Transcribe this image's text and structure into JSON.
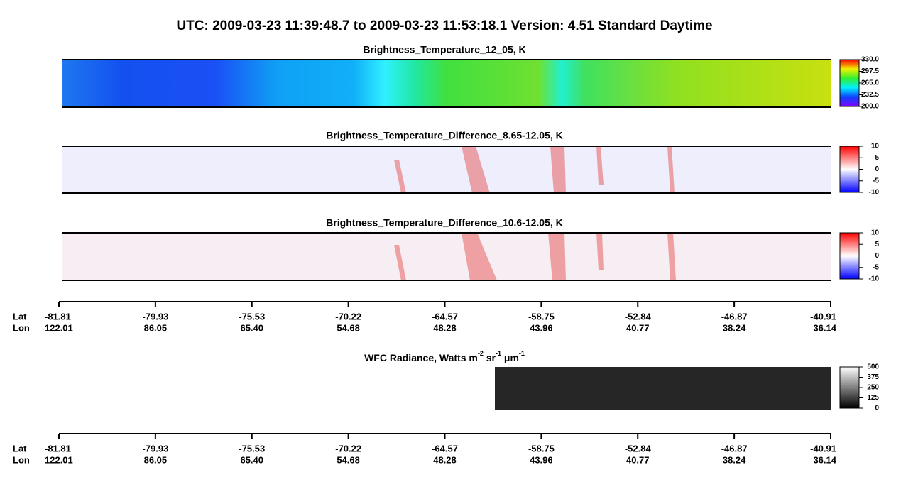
{
  "title": "UTC:  2009-03-23   11:39:48.7  to  2009-03-23   11:53:18.1    Version: 4.51  Standard Daytime",
  "panels": [
    {
      "title": "Brightness_Temperature_12_05, K",
      "colorbar_ticks": [
        {
          "value": 330,
          "label": "330.0"
        },
        {
          "value": 297.5,
          "label": "297.5"
        },
        {
          "value": 265,
          "label": "265.0"
        },
        {
          "value": 232.5,
          "label": "232.5"
        },
        {
          "value": 200,
          "label": "200.0"
        }
      ]
    },
    {
      "title": "Brightness_Temperature_Difference_8.65-12.05, K",
      "colorbar_ticks": [
        10,
        5,
        0,
        -5,
        -10
      ]
    },
    {
      "title": "Brightness_Temperature_Difference_10.6-12.05, K",
      "colorbar_ticks": [
        10,
        5,
        0,
        -5,
        -10
      ]
    }
  ],
  "wfc": {
    "title_parts": [
      "WFC Radiance, Watts m",
      "-2",
      " sr",
      "-1",
      " μm",
      "-1"
    ],
    "colorbar_ticks": [
      500,
      375,
      250,
      125,
      0
    ]
  },
  "axes": [
    {
      "lat_label": "Lat",
      "lon_label": "Lon",
      "lat": [
        -81.81,
        -79.93,
        -75.53,
        -70.22,
        -64.57,
        -58.75,
        -52.84,
        -46.87,
        -40.91
      ],
      "lon": [
        122.01,
        86.05,
        {
          "value": 65.4,
          "label": "65.40"
        },
        54.68,
        48.28,
        43.96,
        40.77,
        38.24,
        36.14
      ]
    },
    {
      "lat_label": "Lat",
      "lon_label": "Lon",
      "lat": [
        -81.81,
        -79.93,
        -75.53,
        -70.22,
        -64.57,
        -58.75,
        -52.84,
        -46.87,
        -40.91
      ],
      "lon": [
        122.01,
        86.05,
        {
          "value": 65.4,
          "label": "65.40"
        },
        54.68,
        48.28,
        43.96,
        40.77,
        38.24,
        36.14
      ]
    }
  ]
}
